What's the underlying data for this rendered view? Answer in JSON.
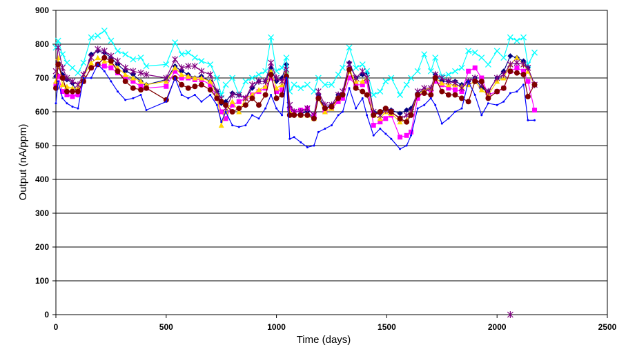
{
  "chart_data": {
    "type": "line",
    "title": "",
    "xlabel": "Time (days)",
    "ylabel": "Output (nA/ppm)",
    "xlim": [
      0,
      2500
    ],
    "ylim": [
      0,
      900
    ],
    "x_ticks": [
      0,
      500,
      1000,
      1500,
      2000,
      2500
    ],
    "y_ticks": [
      0,
      100,
      200,
      300,
      400,
      500,
      600,
      700,
      800,
      900
    ],
    "grid": "horizontal",
    "legend": "none",
    "x": [
      0,
      10,
      30,
      50,
      75,
      100,
      125,
      160,
      190,
      220,
      250,
      280,
      315,
      350,
      385,
      410,
      500,
      540,
      570,
      600,
      630,
      660,
      700,
      730,
      750,
      770,
      800,
      830,
      860,
      890,
      920,
      950,
      975,
      1000,
      1025,
      1045,
      1060,
      1080,
      1110,
      1140,
      1170,
      1190,
      1220,
      1250,
      1280,
      1300,
      1330,
      1360,
      1390,
      1410,
      1440,
      1470,
      1495,
      1520,
      1560,
      1590,
      1610,
      1640,
      1670,
      1700,
      1720,
      1750,
      1780,
      1810,
      1840,
      1870,
      1900,
      1930,
      1960,
      2000,
      2030,
      2060,
      2090,
      2120,
      2140,
      2170
    ],
    "series": [
      {
        "marker": "diamond",
        "color": "#000080",
        "values": [
          705,
          745,
          710,
          695,
          685,
          650,
          700,
          770,
          780,
          775,
          760,
          740,
          720,
          710,
          690,
          680,
          695,
          735,
          720,
          710,
          700,
          705,
          690,
          660,
          625,
          630,
          655,
          650,
          640,
          670,
          690,
          690,
          730,
          690,
          700,
          740,
          600,
          590,
          595,
          600,
          580,
          650,
          610,
          620,
          650,
          650,
          745,
          700,
          710,
          715,
          600,
          595,
          610,
          605,
          595,
          605,
          610,
          655,
          665,
          665,
          710,
          690,
          690,
          690,
          680,
          690,
          700,
          670,
          660,
          700,
          720,
          765,
          760,
          750,
          730,
          680
        ],
        "marker_values": [
          705,
          745,
          710,
          690,
          685,
          650,
          700,
          770,
          780,
          775,
          760,
          720,
          710,
          690,
          680,
          720,
          660,
          625,
          630,
          655,
          640,
          690,
          690,
          740,
          600,
          590,
          580,
          650,
          620,
          745,
          710,
          715,
          595,
          605,
          595,
          655,
          665,
          710,
          690,
          690,
          690,
          700,
          660,
          720,
          765,
          750,
          730,
          680
        ]
      },
      {
        "marker": "square",
        "color": "#ff00ff",
        "values": [
          680,
          705,
          660,
          650,
          645,
          650,
          690,
          730,
          740,
          735,
          730,
          715,
          700,
          690,
          675,
          670,
          675,
          720,
          700,
          700,
          695,
          695,
          680,
          640,
          600,
          580,
          620,
          630,
          640,
          650,
          660,
          670,
          700,
          660,
          665,
          690,
          610,
          600,
          605,
          610,
          590,
          640,
          600,
          610,
          630,
          640,
          700,
          680,
          680,
          690,
          560,
          570,
          580,
          590,
          525,
          530,
          540,
          640,
          660,
          665,
          690,
          680,
          670,
          665,
          660,
          720,
          730,
          700,
          650,
          660,
          670,
          720,
          730,
          720,
          690,
          605
        ],
        "marker_values": [
          680,
          705,
          660,
          650,
          645,
          690,
          730,
          740,
          735,
          715,
          700,
          690,
          675,
          670,
          720,
          700,
          695,
          680,
          640,
          580,
          620,
          630,
          650,
          670,
          700,
          660,
          690,
          610,
          605,
          590,
          640,
          610,
          630,
          700,
          680,
          680,
          560,
          570,
          580,
          525,
          530,
          540,
          640,
          660,
          690,
          680,
          665,
          660,
          720,
          730,
          700,
          650,
          670,
          720,
          730,
          720,
          690,
          605
        ]
      },
      {
        "marker": "triangle",
        "color": "#ffd700",
        "values": [
          690,
          760,
          680,
          675,
          670,
          670,
          705,
          745,
          760,
          750,
          745,
          730,
          710,
          700,
          690,
          680,
          690,
          730,
          710,
          705,
          700,
          700,
          690,
          650,
          560,
          600,
          630,
          600,
          640,
          650,
          665,
          675,
          720,
          670,
          680,
          720,
          600,
          595,
          590,
          590,
          580,
          640,
          600,
          610,
          640,
          650,
          720,
          690,
          690,
          700,
          590,
          580,
          600,
          595,
          570,
          575,
          600,
          650,
          665,
          670,
          700,
          685,
          680,
          680,
          675,
          680,
          690,
          665,
          650,
          690,
          700,
          740,
          760,
          740,
          720,
          680
        ]
      },
      {
        "marker": "x",
        "color": "#00ffff",
        "values": [
          790,
          810,
          770,
          745,
          730,
          715,
          745,
          820,
          825,
          840,
          810,
          780,
          770,
          755,
          760,
          735,
          740,
          805,
          770,
          775,
          760,
          750,
          740,
          700,
          650,
          680,
          700,
          650,
          690,
          700,
          710,
          720,
          820,
          720,
          730,
          760,
          660,
          680,
          670,
          680,
          660,
          700,
          680,
          680,
          710,
          730,
          790,
          730,
          740,
          720,
          650,
          660,
          690,
          700,
          650,
          680,
          700,
          720,
          770,
          720,
          760,
          705,
          710,
          720,
          730,
          780,
          775,
          760,
          740,
          780,
          760,
          820,
          810,
          820,
          740,
          775
        ]
      },
      {
        "marker": "asterisk",
        "color": "#800080",
        "values": [
          720,
          790,
          730,
          700,
          690,
          680,
          710,
          760,
          785,
          780,
          765,
          750,
          730,
          720,
          715,
          710,
          700,
          755,
          730,
          735,
          735,
          720,
          710,
          660,
          640,
          610,
          650,
          650,
          640,
          680,
          690,
          690,
          745,
          700,
          690,
          725,
          620,
          600,
          600,
          610,
          590,
          660,
          620,
          620,
          650,
          660,
          740,
          700,
          720,
          700,
          600,
          590,
          605,
          600,
          580,
          590,
          600,
          660,
          670,
          670,
          710,
          700,
          690,
          685,
          670,
          690,
          700,
          680,
          660,
          700,
          710,
          740,
          745,
          740,
          730,
          680
        ],
        "outlier": {
          "x": 2060,
          "y": 0
        }
      },
      {
        "marker": "circle",
        "color": "#800000",
        "values": [
          670,
          740,
          700,
          660,
          660,
          660,
          690,
          730,
          740,
          760,
          750,
          720,
          690,
          670,
          665,
          670,
          635,
          700,
          680,
          670,
          675,
          680,
          665,
          640,
          630,
          620,
          600,
          610,
          620,
          640,
          620,
          650,
          710,
          640,
          650,
          705,
          590,
          590,
          590,
          590,
          580,
          640,
          610,
          615,
          640,
          650,
          725,
          670,
          660,
          650,
          590,
          600,
          610,
          600,
          580,
          570,
          590,
          650,
          655,
          650,
          700,
          660,
          650,
          650,
          640,
          630,
          690,
          690,
          640,
          660,
          670,
          720,
          715,
          710,
          645,
          680
        ]
      },
      {
        "marker": "dot",
        "color": "#0000ff",
        "values": [
          625,
          690,
          640,
          625,
          615,
          610,
          700,
          700,
          740,
          720,
          690,
          660,
          635,
          640,
          650,
          605,
          630,
          700,
          650,
          640,
          650,
          630,
          650,
          620,
          570,
          600,
          560,
          555,
          560,
          590,
          580,
          610,
          650,
          610,
          590,
          700,
          520,
          525,
          510,
          495,
          500,
          540,
          550,
          560,
          590,
          600,
          670,
          610,
          640,
          590,
          530,
          550,
          535,
          520,
          490,
          500,
          530,
          610,
          620,
          640,
          620,
          565,
          580,
          600,
          610,
          690,
          650,
          590,
          625,
          620,
          630,
          655,
          660,
          680,
          575,
          575
        ]
      }
    ]
  }
}
